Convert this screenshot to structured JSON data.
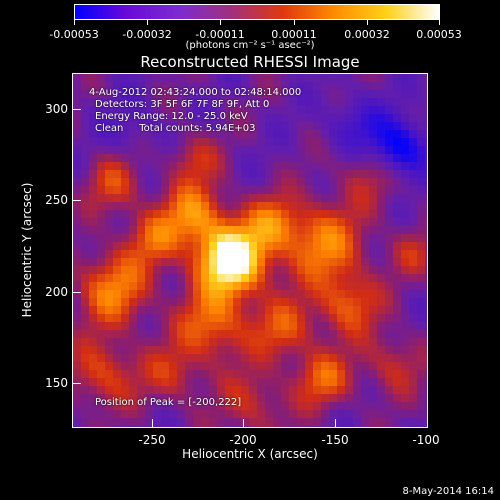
{
  "colorbar": {
    "tick_labels": [
      "-0.00053",
      "-0.00032",
      "-0.00011",
      "0.00011",
      "0.00032",
      "0.00053"
    ],
    "units": "(photons cm⁻² s⁻¹ asec⁻²)",
    "colors": [
      "#0000ff",
      "#6a0ad8",
      "#7c2bd0",
      "#a0307f",
      "#e0380f",
      "#ff8c00",
      "#ffd21a",
      "#ffffff"
    ]
  },
  "title": "Reconstructed RHESSI Image",
  "annotations": {
    "time_range": "4-Aug-2012 02:43:24.000 to 02:48:14.000",
    "detectors": "Detectors: 3F 5F 6F 7F 8F 9F, Att 0",
    "energy": "Energy Range: 12.0 - 25.0 keV",
    "clean": "Clean     Total counts: 5.94E+03",
    "peak": "Position of Peak = [-200,222]"
  },
  "axes": {
    "xlabel": "Heliocentric X (arcsec)",
    "ylabel": "Heliocentric Y (arcsec)",
    "x_ticks": [
      "-250",
      "-200",
      "-150",
      "-100"
    ],
    "y_ticks": [
      "300",
      "250",
      "200",
      "150"
    ]
  },
  "footer": {
    "date": "8-May-2014 16:14"
  }
}
